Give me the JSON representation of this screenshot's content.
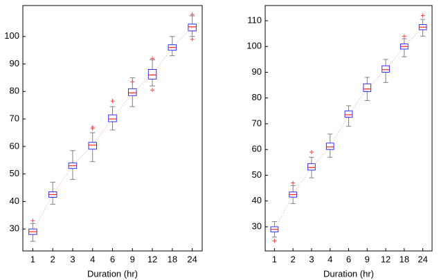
{
  "chart_data": [
    {
      "type": "box",
      "xlabel": "Duration (hr)",
      "categories": [
        "1",
        "2",
        "3",
        "4",
        "6",
        "9",
        "12",
        "18",
        "24"
      ],
      "ylim": [
        22,
        111.25
      ],
      "yticks": [
        30,
        40,
        50,
        60,
        70,
        80,
        90,
        100
      ],
      "box_color": "#2b2bff",
      "median_color": "#ff2020",
      "whisker_color": "#808080",
      "flier_color": "#ff4040",
      "line_color": "#ff9090",
      "boxes": [
        {
          "whislo": 25.5,
          "q1": 28,
          "median": 29,
          "q3": 30,
          "whishi": 32,
          "fliers": [
            33
          ]
        },
        {
          "whislo": 39,
          "q1": 41.5,
          "median": 42.5,
          "q3": 43.5,
          "whishi": 47,
          "fliers": []
        },
        {
          "whislo": 48,
          "q1": 52,
          "median": 53,
          "q3": 54,
          "whishi": 58.5,
          "fliers": []
        },
        {
          "whislo": 54.5,
          "q1": 59,
          "median": 60.5,
          "q3": 61.5,
          "whishi": 65,
          "fliers": [
            66.5,
            67
          ]
        },
        {
          "whislo": 66,
          "q1": 69,
          "median": 70,
          "q3": 71.5,
          "whishi": 74.5,
          "fliers": [
            76.5
          ]
        },
        {
          "whislo": 74.5,
          "q1": 78.5,
          "median": 79.5,
          "q3": 81,
          "whishi": 85,
          "fliers": [
            83.5
          ]
        },
        {
          "whislo": 82,
          "q1": 84.5,
          "median": 86,
          "q3": 88,
          "whishi": 91.5,
          "fliers": [
            80.5,
            92
          ]
        },
        {
          "whislo": 93,
          "q1": 95,
          "median": 96,
          "q3": 97,
          "whishi": 100,
          "fliers": []
        },
        {
          "whislo": 100,
          "q1": 102,
          "median": 103.5,
          "q3": 104.5,
          "whishi": 107.5,
          "fliers": [
            99,
            108
          ]
        }
      ]
    },
    {
      "type": "box",
      "xlabel": "Duration (hr)",
      "categories": [
        "1",
        "2",
        "3",
        "4",
        "6",
        "9",
        "12",
        "18",
        "24"
      ],
      "ylim": [
        20.6,
        115.9
      ],
      "yticks": [
        30,
        40,
        50,
        60,
        70,
        80,
        90,
        100,
        110
      ],
      "box_color": "#2b2bff",
      "median_color": "#ff2020",
      "whisker_color": "#808080",
      "flier_color": "#ff4040",
      "line_color": "#ff9090",
      "boxes": [
        {
          "whislo": 26,
          "q1": 28,
          "median": 29,
          "q3": 30,
          "whishi": 32,
          "fliers": [
            24.5
          ]
        },
        {
          "whislo": 39,
          "q1": 41.5,
          "median": 42.5,
          "q3": 43.5,
          "whishi": 46,
          "fliers": [
            47
          ]
        },
        {
          "whislo": 49,
          "q1": 52,
          "median": 53,
          "q3": 54.5,
          "whishi": 57,
          "fliers": [
            59
          ]
        },
        {
          "whislo": 57,
          "q1": 60,
          "median": 61,
          "q3": 62.5,
          "whishi": 66,
          "fliers": []
        },
        {
          "whislo": 69,
          "q1": 72.5,
          "median": 73.5,
          "q3": 75,
          "whishi": 77,
          "fliers": []
        },
        {
          "whislo": 79,
          "q1": 82.5,
          "median": 83.5,
          "q3": 85.5,
          "whishi": 88,
          "fliers": []
        },
        {
          "whislo": 86,
          "q1": 90,
          "median": 91,
          "q3": 92.5,
          "whishi": 95,
          "fliers": []
        },
        {
          "whislo": 96,
          "q1": 99,
          "median": 100,
          "q3": 101,
          "whishi": 103,
          "fliers": [
            104
          ]
        },
        {
          "whislo": 104,
          "q1": 106.5,
          "median": 107.5,
          "q3": 108.5,
          "whishi": 110.5,
          "fliers": [
            112
          ]
        }
      ]
    }
  ]
}
